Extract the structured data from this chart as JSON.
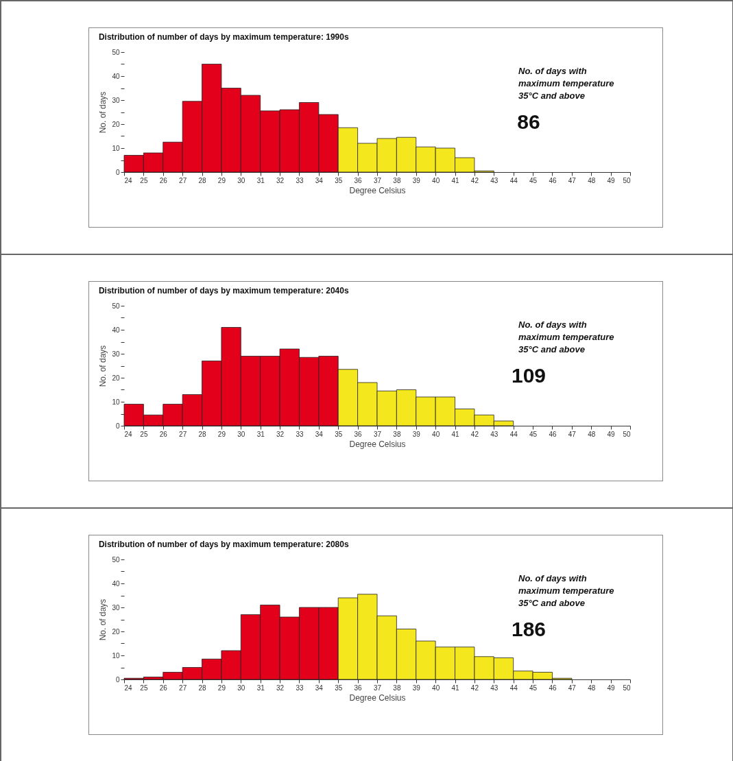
{
  "chart_data": [
    {
      "type": "histogram",
      "title": "Distribution of number of days by maximum temperature: 1990s",
      "xlabel": "Degree Celsius",
      "ylabel": "No. of days",
      "bins": [
        24,
        25,
        26,
        27,
        28,
        29,
        30,
        31,
        32,
        33,
        34,
        35,
        36,
        37,
        38,
        39,
        40,
        41,
        42,
        43,
        44,
        45,
        46,
        47,
        48,
        49,
        50
      ],
      "values": [
        7,
        8,
        12.5,
        29.5,
        45,
        35,
        32,
        25.5,
        26,
        29,
        24,
        18.5,
        12,
        14,
        14.5,
        10.5,
        10,
        6,
        0.5,
        null,
        null,
        null,
        null,
        null,
        null,
        null
      ],
      "colors": [
        "#e2001a",
        "#e2001a",
        "#e2001a",
        "#e2001a",
        "#e2001a",
        "#e2001a",
        "#e2001a",
        "#e2001a",
        "#e2001a",
        "#e2001a",
        "#e2001a",
        "#f5e71e",
        "#f5e71e",
        "#f5e71e",
        "#f5e71e",
        "#f5e71e",
        "#f5e71e",
        "#f5e71e",
        "#f5e71e",
        "#f5e71e",
        "#f5e71e",
        "#f5e71e",
        "#f5e71e",
        "#f5e71e",
        "#f5e71e",
        "#f5e71e"
      ],
      "xlim": [
        24,
        50
      ],
      "xticks": [
        24,
        25,
        26,
        27,
        28,
        29,
        30,
        31,
        32,
        33,
        34,
        35,
        36,
        37,
        38,
        39,
        40,
        41,
        42,
        43,
        44,
        45,
        46,
        47,
        48,
        49,
        50
      ],
      "ylim": [
        0,
        50
      ],
      "yticks": [
        0,
        {
          "value": 5,
          "label": null
        },
        10,
        {
          "value": 15,
          "label": null
        },
        20,
        {
          "value": 25,
          "label": null
        },
        30,
        {
          "value": 35,
          "label": null
        },
        40,
        {
          "value": 45,
          "label": null
        },
        50
      ],
      "annotations": [
        "No. of days with\nmaximum temperature\n35°C and above",
        "86"
      ]
    },
    {
      "type": "histogram",
      "title": "Distribution of number of days by maximum temperature: 2040s",
      "xlabel": "Degree Celsius",
      "ylabel": "No. of days",
      "bins": [
        24,
        25,
        26,
        27,
        28,
        29,
        30,
        31,
        32,
        33,
        34,
        35,
        36,
        37,
        38,
        39,
        40,
        41,
        42,
        43,
        44,
        45,
        46,
        47,
        48,
        49,
        50
      ],
      "values": [
        9,
        4.5,
        9,
        13,
        27,
        41,
        29,
        29,
        32,
        28.5,
        29,
        23.5,
        18,
        14.5,
        15,
        12,
        12,
        7,
        4.5,
        2,
        null,
        null,
        null,
        null,
        null,
        null
      ],
      "colors": [
        "#e2001a",
        "#e2001a",
        "#e2001a",
        "#e2001a",
        "#e2001a",
        "#e2001a",
        "#e2001a",
        "#e2001a",
        "#e2001a",
        "#e2001a",
        "#e2001a",
        "#f5e71e",
        "#f5e71e",
        "#f5e71e",
        "#f5e71e",
        "#f5e71e",
        "#f5e71e",
        "#f5e71e",
        "#f5e71e",
        "#f5e71e",
        "#f5e71e",
        "#f5e71e",
        "#f5e71e",
        "#f5e71e",
        "#f5e71e",
        "#f5e71e"
      ],
      "xlim": [
        24,
        50
      ],
      "xticks": [
        24,
        25,
        26,
        27,
        28,
        29,
        30,
        31,
        32,
        33,
        34,
        35,
        36,
        37,
        38,
        39,
        40,
        41,
        42,
        43,
        44,
        45,
        46,
        47,
        48,
        49,
        50
      ],
      "ylim": [
        0,
        50
      ],
      "yticks": [
        0,
        {
          "value": 5,
          "label": null
        },
        10,
        {
          "value": 15,
          "label": null
        },
        20,
        {
          "value": 25,
          "label": null
        },
        30,
        {
          "value": 35,
          "label": null
        },
        40,
        {
          "value": 45,
          "label": null
        },
        50
      ],
      "annotations": [
        "No. of days with\nmaximum temperature\n35°C and above",
        "109"
      ]
    },
    {
      "type": "histogram",
      "title": "Distribution of number of days by maximum temperature: 2080s",
      "xlabel": "Degree Celsius",
      "ylabel": "No. of days",
      "bins": [
        24,
        25,
        26,
        27,
        28,
        29,
        30,
        31,
        32,
        33,
        34,
        35,
        36,
        37,
        38,
        39,
        40,
        41,
        42,
        43,
        44,
        45,
        46,
        47,
        48,
        49,
        50
      ],
      "values": [
        0.5,
        1,
        3,
        5,
        8.5,
        12,
        27,
        31,
        26,
        30,
        30,
        34,
        35.5,
        26.5,
        21,
        16,
        13.5,
        13.5,
        9.5,
        9,
        3.5,
        3,
        0.5,
        null,
        null,
        null
      ],
      "colors": [
        "#e2001a",
        "#e2001a",
        "#e2001a",
        "#e2001a",
        "#e2001a",
        "#e2001a",
        "#e2001a",
        "#e2001a",
        "#e2001a",
        "#e2001a",
        "#e2001a",
        "#f5e71e",
        "#f5e71e",
        "#f5e71e",
        "#f5e71e",
        "#f5e71e",
        "#f5e71e",
        "#f5e71e",
        "#f5e71e",
        "#f5e71e",
        "#f5e71e",
        "#f5e71e",
        "#f5e71e",
        "#f5e71e",
        "#f5e71e",
        "#f5e71e"
      ],
      "xlim": [
        24,
        50
      ],
      "xticks": [
        24,
        25,
        26,
        27,
        28,
        29,
        30,
        31,
        32,
        33,
        34,
        35,
        36,
        37,
        38,
        39,
        40,
        41,
        42,
        43,
        44,
        45,
        46,
        47,
        48,
        49,
        50
      ],
      "ylim": [
        0,
        50
      ],
      "yticks": [
        0,
        {
          "value": 5,
          "label": null
        },
        10,
        {
          "value": 15,
          "label": null
        },
        20,
        {
          "value": 25,
          "label": null
        },
        30,
        {
          "value": 35,
          "label": null
        },
        40,
        {
          "value": 45,
          "label": null
        },
        50
      ],
      "annotations": [
        "No. of days with\nmaximum temperature\n35°C and above",
        "186"
      ]
    }
  ]
}
